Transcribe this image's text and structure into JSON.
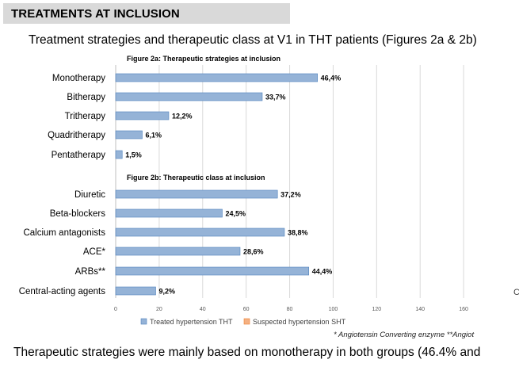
{
  "header": {
    "title": "TREATMENTS AT INCLUSION"
  },
  "subtitle": "Treatment strategies and therapeutic class at V1 in THT patients  (Figures 2a & 2b)",
  "chart_data": [
    {
      "type": "bar",
      "orientation": "horizontal",
      "title": "Figure 2a: Therapeutic strategies at inclusion",
      "categories": [
        "Monotherapy",
        "Bitherapy",
        "Tritherapy",
        "Quadritherapy",
        "Pentatherapy"
      ],
      "series": [
        {
          "name": "Treated hypertension THT",
          "values": [
            92.8,
            67.4,
            24.4,
            12.2,
            3.0
          ]
        }
      ],
      "data_labels": [
        "46,4%",
        "33,7%",
        "12,2%",
        "6,1%",
        "1,5%"
      ],
      "xlim": [
        0,
        180
      ],
      "grid": true
    },
    {
      "type": "bar",
      "orientation": "horizontal",
      "title": "Figure 2b: Therapeutic class at inclusion",
      "categories": [
        "Diuretic",
        "Beta-blockers",
        "Calcium antagonists",
        "ACE*",
        "ARBs**",
        "Central-acting agents"
      ],
      "series": [
        {
          "name": "Treated hypertension THT",
          "values": [
            74.4,
            49.0,
            77.6,
            57.2,
            88.8,
            18.4
          ]
        }
      ],
      "data_labels": [
        "37,2%",
        "24,5%",
        "38,8%",
        "28,6%",
        "44,4%",
        "9,2%"
      ],
      "xticks": [
        "0",
        "20",
        "40",
        "60",
        "80",
        "100",
        "120",
        "140",
        "160"
      ],
      "xlim": [
        0,
        180
      ],
      "grid": true
    }
  ],
  "legend": [
    {
      "label": "Treated hypertension THT",
      "color": "#95b3d7"
    },
    {
      "label": "Suspected hypertension SHT",
      "color": "#f4b183"
    }
  ],
  "colors": {
    "bar_fill": "#95b3d7",
    "bar_stroke": "#4f81bd",
    "grid": "#d9d9d9",
    "header_bg": "#d9d9d9"
  },
  "footnote": "* Angiotensin Converting enzyme  **Angiot",
  "bottom_text": "Therapeutic strategies were mainly based on monotherapy in both groups (46.4% and",
  "bottom_text_clipped": "...",
  "stray_glyph": "C"
}
